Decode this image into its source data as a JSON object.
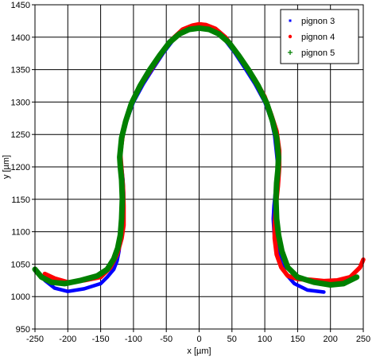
{
  "chart_data": {
    "type": "scatter",
    "title": "",
    "xlabel": "x [µm]",
    "ylabel": "y [µm]",
    "xlim": [
      -250,
      250
    ],
    "ylim": [
      950,
      1450
    ],
    "xticks": [
      "-250",
      "-200",
      "-150",
      "-100",
      "-50",
      "0",
      "50",
      "100",
      "150",
      "200",
      "250"
    ],
    "yticks": [
      "950",
      "1000",
      "1050",
      "1100",
      "1150",
      "1200",
      "1250",
      "1300",
      "1350",
      "1400",
      "1450"
    ],
    "grid": true,
    "legend_position": "top-right",
    "series": [
      {
        "name": "pignon 3",
        "color": "#0000ff",
        "marker": "square",
        "x": [
          -235,
          -220,
          -200,
          -175,
          -150,
          -140,
          -130,
          -125,
          -122,
          -120,
          -118,
          -116,
          -115,
          -115,
          -116,
          -118,
          -120,
          -116,
          -110,
          -100,
          -85,
          -70,
          -55,
          -40,
          -25,
          -10,
          0,
          10,
          25,
          40,
          55,
          70,
          85,
          100,
          110,
          115,
          118,
          120,
          118,
          116,
          114,
          113,
          114,
          116,
          120,
          125,
          132,
          145,
          165,
          190
        ],
        "y": [
          1025,
          1013,
          1008,
          1012,
          1020,
          1030,
          1042,
          1055,
          1070,
          1090,
          1105,
          1120,
          1140,
          1160,
          1180,
          1200,
          1218,
          1248,
          1272,
          1300,
          1328,
          1352,
          1375,
          1395,
          1408,
          1414,
          1416,
          1414,
          1408,
          1395,
          1375,
          1352,
          1328,
          1300,
          1272,
          1248,
          1220,
          1200,
          1180,
          1160,
          1140,
          1120,
          1100,
          1085,
          1070,
          1052,
          1035,
          1020,
          1010,
          1007
        ]
      },
      {
        "name": "pignon 4",
        "color": "#ff0000",
        "marker": "circle",
        "x": [
          -235,
          -220,
          -200,
          -175,
          -150,
          -135,
          -125,
          -118,
          -115,
          -115,
          -116,
          -118,
          -120,
          -116,
          -110,
          -100,
          -85,
          -70,
          -55,
          -40,
          -25,
          -10,
          0,
          10,
          25,
          40,
          55,
          70,
          85,
          100,
          110,
          118,
          122,
          122,
          120,
          117,
          115,
          115,
          118,
          125,
          135,
          150,
          170,
          190,
          210,
          230,
          245,
          250
        ],
        "y": [
          1035,
          1028,
          1022,
          1025,
          1030,
          1045,
          1065,
          1090,
          1110,
          1140,
          1170,
          1195,
          1220,
          1252,
          1278,
          1305,
          1332,
          1355,
          1378,
          1398,
          1412,
          1418,
          1420,
          1419,
          1413,
          1400,
          1380,
          1358,
          1335,
          1308,
          1280,
          1255,
          1225,
          1200,
          1170,
          1140,
          1110,
          1090,
          1065,
          1045,
          1032,
          1027,
          1026,
          1024,
          1025,
          1030,
          1045,
          1057
        ]
      },
      {
        "name": "pignon 5",
        "color": "#008000",
        "marker": "plus",
        "x": [
          -250,
          -240,
          -225,
          -205,
          -180,
          -155,
          -140,
          -130,
          -124,
          -120,
          -118,
          -117,
          -118,
          -120,
          -121,
          -118,
          -112,
          -103,
          -90,
          -75,
          -60,
          -45,
          -30,
          -15,
          0,
          15,
          30,
          45,
          60,
          75,
          90,
          103,
          112,
          118,
          121,
          120,
          118,
          117,
          118,
          121,
          126,
          135,
          150,
          175,
          200,
          220,
          240
        ],
        "y": [
          1042,
          1030,
          1022,
          1020,
          1025,
          1032,
          1042,
          1058,
          1075,
          1095,
          1120,
          1150,
          1180,
          1200,
          1215,
          1245,
          1270,
          1298,
          1325,
          1350,
          1372,
          1392,
          1405,
          1412,
          1414,
          1412,
          1405,
          1392,
          1372,
          1350,
          1325,
          1298,
          1270,
          1245,
          1215,
          1195,
          1175,
          1150,
          1120,
          1095,
          1070,
          1045,
          1030,
          1022,
          1018,
          1020,
          1030
        ]
      }
    ]
  }
}
